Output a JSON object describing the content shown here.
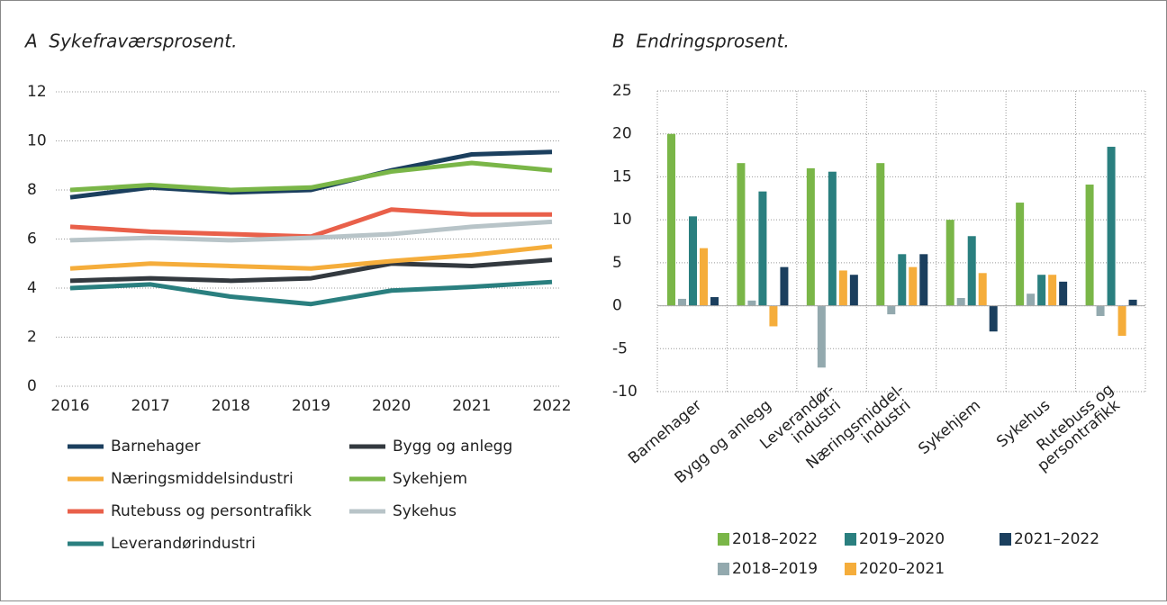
{
  "chart_data": [
    {
      "type": "line",
      "title": "A  Sykefraværsprosent.",
      "categories": [
        "2016",
        "2017",
        "2018",
        "2019",
        "2020",
        "2021",
        "2022"
      ],
      "ylim": [
        0,
        12
      ],
      "yticks": [
        0,
        2,
        4,
        6,
        8,
        10,
        12
      ],
      "grid": true,
      "series": [
        {
          "name": "Barnehager",
          "color": "#1b3f5e",
          "values": [
            7.7,
            8.1,
            7.9,
            8.0,
            8.8,
            9.45,
            9.55
          ]
        },
        {
          "name": "Bygg og anlegg",
          "color": "#33393f",
          "values": [
            4.3,
            4.4,
            4.3,
            4.4,
            5.0,
            4.9,
            5.15
          ]
        },
        {
          "name": "Næringsmiddelsindustri",
          "color": "#f5ad3b",
          "values": [
            4.8,
            5.0,
            4.9,
            4.8,
            5.1,
            5.35,
            5.7
          ]
        },
        {
          "name": "Sykehjem",
          "color": "#7ab648",
          "values": [
            8.0,
            8.2,
            8.0,
            8.1,
            8.75,
            9.1,
            8.8
          ]
        },
        {
          "name": "Rutebuss og persontrafikk",
          "color": "#e9604a",
          "values": [
            6.5,
            6.3,
            6.2,
            6.1,
            7.2,
            7.0,
            7.0
          ]
        },
        {
          "name": "Sykehus",
          "color": "#b8c4c8",
          "values": [
            5.95,
            6.05,
            5.95,
            6.05,
            6.2,
            6.5,
            6.7
          ]
        },
        {
          "name": "Leverandørindustri",
          "color": "#2a7f7f",
          "values": [
            4.0,
            4.15,
            3.65,
            3.35,
            3.9,
            4.05,
            4.25
          ]
        }
      ]
    },
    {
      "type": "bar",
      "title": "B  Endringsprosent.",
      "categories": [
        [
          "Barnehager"
        ],
        [
          "Bygg og anlegg"
        ],
        [
          "Leverandør-",
          "industri"
        ],
        [
          "Næringsmiddel-",
          "industri"
        ],
        [
          "Sykehjem"
        ],
        [
          "Sykehus"
        ],
        [
          "Rutebuss og",
          "persontrafikk"
        ]
      ],
      "ylim": [
        -10,
        25
      ],
      "yticks": [
        -10,
        -5,
        0,
        5,
        10,
        15,
        20,
        25
      ],
      "grid": true,
      "series": [
        {
          "name": "2018–2022",
          "color": "#7ab648",
          "values": [
            20,
            16.6,
            16,
            16.6,
            10,
            12,
            14.1
          ]
        },
        {
          "name": "2018–2019",
          "color": "#93a9ae",
          "values": [
            0.8,
            0.6,
            -7.2,
            -1.0,
            0.9,
            1.4,
            -1.2
          ]
        },
        {
          "name": "2019–2020",
          "color": "#2a7f7f",
          "values": [
            10.4,
            13.3,
            15.6,
            6.0,
            8.1,
            3.6,
            18.5
          ]
        },
        {
          "name": "2020–2021",
          "color": "#f5ad3b",
          "values": [
            6.7,
            -2.4,
            4.1,
            4.5,
            3.8,
            3.6,
            -3.5
          ]
        },
        {
          "name": "2021–2022",
          "color": "#1b3f5e",
          "values": [
            1.0,
            4.5,
            3.6,
            6.0,
            -3.0,
            2.8,
            0.7
          ]
        }
      ]
    }
  ]
}
